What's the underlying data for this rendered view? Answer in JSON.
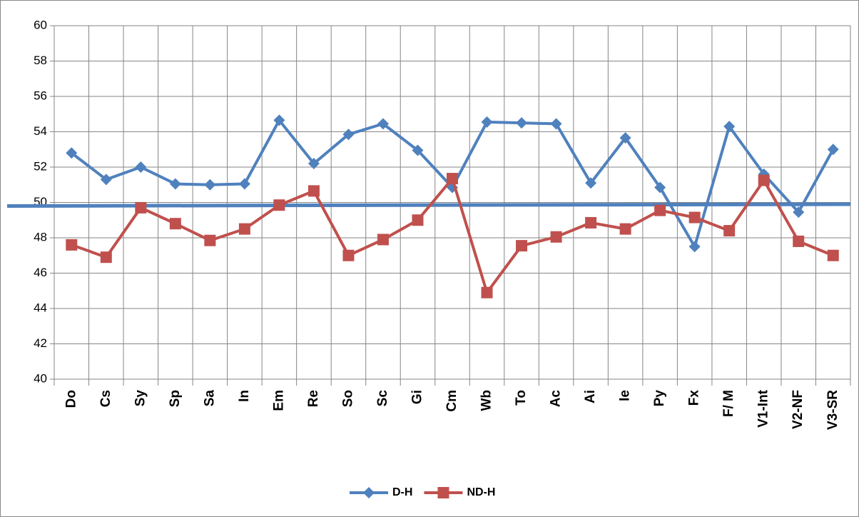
{
  "chart_data": {
    "type": "line",
    "categories": [
      "Do",
      "Cs",
      "Sy",
      "Sp",
      "Sa",
      "In",
      "Em",
      "Re",
      "So",
      "Sc",
      "Gi",
      "Cm",
      "Wb",
      "To",
      "Ac",
      "Ai",
      "Ie",
      "Py",
      "Fx",
      "F/ M",
      "V1-Int",
      "V2-NF",
      "V3-SR"
    ],
    "series": [
      {
        "name": "D-H",
        "color": "#4f81bd",
        "marker": "diamond",
        "values": [
          52.8,
          51.3,
          52.0,
          51.05,
          51.0,
          51.05,
          54.65,
          52.2,
          53.85,
          54.45,
          52.95,
          50.85,
          54.55,
          54.5,
          54.45,
          51.1,
          53.65,
          50.85,
          47.5,
          54.3,
          51.6,
          49.45,
          53.0
        ]
      },
      {
        "name": "ND-H",
        "color": "#c0504d",
        "marker": "square",
        "values": [
          47.6,
          46.9,
          49.7,
          48.8,
          47.85,
          48.5,
          49.85,
          50.65,
          47.0,
          47.9,
          49.0,
          51.35,
          44.9,
          47.55,
          48.05,
          48.85,
          48.5,
          49.55,
          49.15,
          48.4,
          51.25,
          47.8,
          47.0
        ]
      }
    ],
    "trendline": {
      "color": "#4f81bd",
      "values": [
        49.8,
        49.9
      ]
    },
    "ylim": [
      40,
      60
    ],
    "yticks": [
      40,
      42,
      44,
      46,
      48,
      50,
      52,
      54,
      56,
      58,
      60
    ],
    "grid": true,
    "legend": "bottom"
  }
}
